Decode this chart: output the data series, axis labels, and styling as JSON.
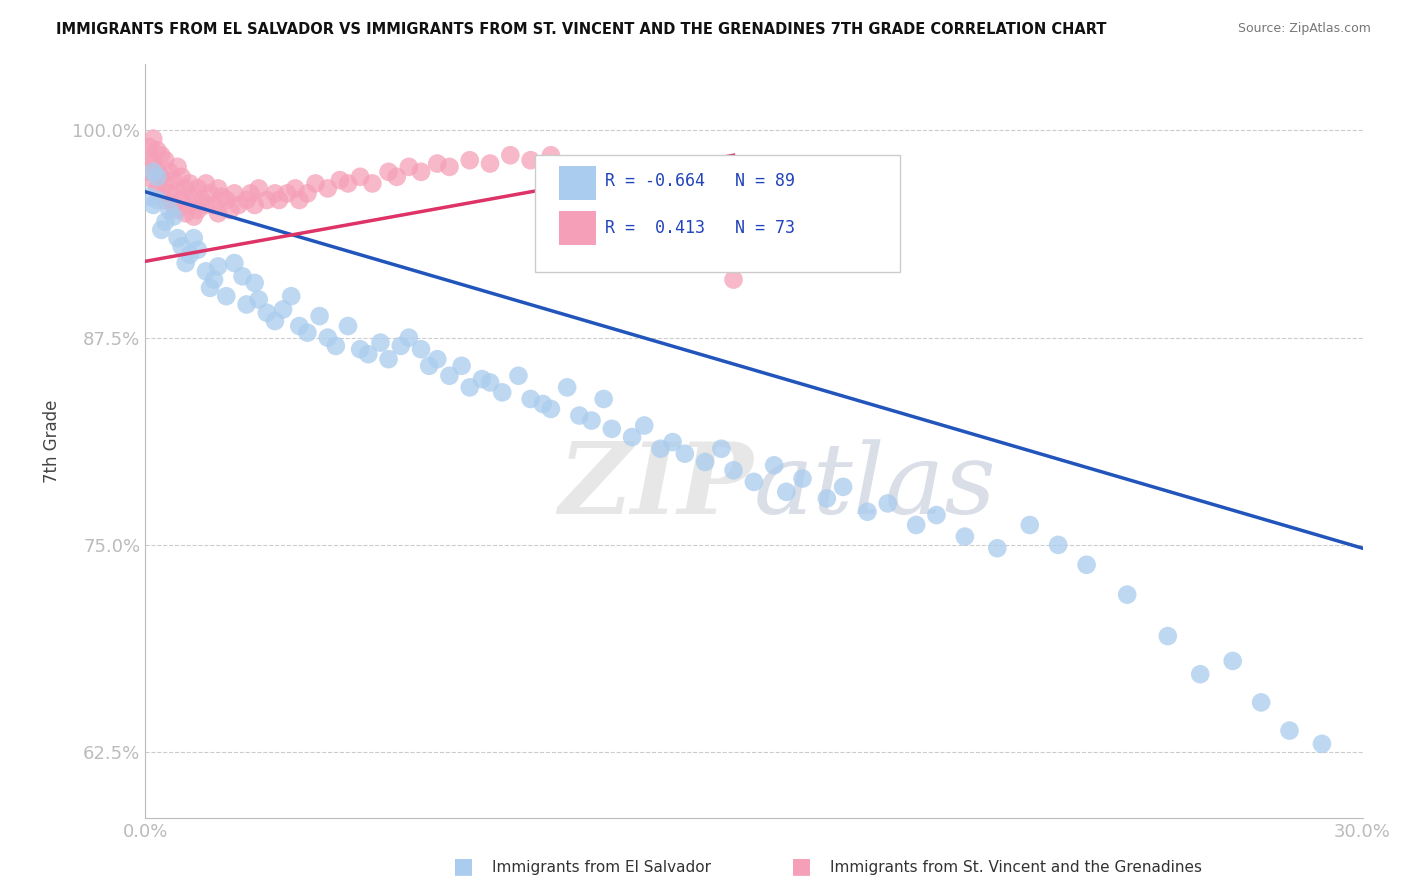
{
  "title": "IMMIGRANTS FROM EL SALVADOR VS IMMIGRANTS FROM ST. VINCENT AND THE GRENADINES 7TH GRADE CORRELATION CHART",
  "source": "Source: ZipAtlas.com",
  "ylabel": "7th Grade",
  "xlim": [
    0.0,
    0.3
  ],
  "ylim": [
    0.585,
    1.04
  ],
  "xtick_labels": [
    "0.0%",
    "30.0%"
  ],
  "xtick_positions": [
    0.0,
    0.3
  ],
  "ytick_labels": [
    "62.5%",
    "75.0%",
    "87.5%",
    "100.0%"
  ],
  "ytick_positions": [
    0.625,
    0.75,
    0.875,
    1.0
  ],
  "blue_color": "#aaccee",
  "pink_color": "#f5a0b8",
  "blue_line_color": "#2255bb",
  "pink_line_color": "#dd3366",
  "legend_R_blue": "-0.664",
  "legend_N_blue": "89",
  "legend_R_pink": "0.413",
  "legend_N_pink": "73",
  "legend_label_blue": "Immigrants from El Salvador",
  "legend_label_pink": "Immigrants from St. Vincent and the Grenadines",
  "watermark": "ZIPatlas",
  "blue_line_x0": 0.0,
  "blue_line_y0": 0.963,
  "blue_line_x1": 0.3,
  "blue_line_y1": 0.748,
  "pink_line_x0": 0.0,
  "pink_line_y0": 0.921,
  "pink_line_x1": 0.145,
  "pink_line_y1": 0.985,
  "blue_scatter_x": [
    0.001,
    0.002,
    0.002,
    0.003,
    0.003,
    0.004,
    0.005,
    0.006,
    0.007,
    0.008,
    0.009,
    0.01,
    0.011,
    0.012,
    0.013,
    0.015,
    0.016,
    0.017,
    0.018,
    0.02,
    0.022,
    0.024,
    0.025,
    0.027,
    0.028,
    0.03,
    0.032,
    0.034,
    0.036,
    0.038,
    0.04,
    0.043,
    0.045,
    0.047,
    0.05,
    0.053,
    0.055,
    0.058,
    0.06,
    0.063,
    0.065,
    0.068,
    0.07,
    0.072,
    0.075,
    0.078,
    0.08,
    0.083,
    0.085,
    0.088,
    0.092,
    0.095,
    0.098,
    0.1,
    0.104,
    0.107,
    0.11,
    0.113,
    0.115,
    0.12,
    0.123,
    0.127,
    0.13,
    0.133,
    0.138,
    0.142,
    0.145,
    0.15,
    0.155,
    0.158,
    0.162,
    0.168,
    0.172,
    0.178,
    0.183,
    0.19,
    0.195,
    0.202,
    0.21,
    0.218,
    0.225,
    0.232,
    0.242,
    0.252,
    0.26,
    0.268,
    0.275,
    0.282,
    0.29
  ],
  "blue_scatter_y": [
    0.96,
    0.955,
    0.975,
    0.958,
    0.972,
    0.94,
    0.945,
    0.952,
    0.948,
    0.935,
    0.93,
    0.92,
    0.925,
    0.935,
    0.928,
    0.915,
    0.905,
    0.91,
    0.918,
    0.9,
    0.92,
    0.912,
    0.895,
    0.908,
    0.898,
    0.89,
    0.885,
    0.892,
    0.9,
    0.882,
    0.878,
    0.888,
    0.875,
    0.87,
    0.882,
    0.868,
    0.865,
    0.872,
    0.862,
    0.87,
    0.875,
    0.868,
    0.858,
    0.862,
    0.852,
    0.858,
    0.845,
    0.85,
    0.848,
    0.842,
    0.852,
    0.838,
    0.835,
    0.832,
    0.845,
    0.828,
    0.825,
    0.838,
    0.82,
    0.815,
    0.822,
    0.808,
    0.812,
    0.805,
    0.8,
    0.808,
    0.795,
    0.788,
    0.798,
    0.782,
    0.79,
    0.778,
    0.785,
    0.77,
    0.775,
    0.762,
    0.768,
    0.755,
    0.748,
    0.762,
    0.75,
    0.738,
    0.72,
    0.695,
    0.672,
    0.68,
    0.655,
    0.638,
    0.63
  ],
  "pink_scatter_x": [
    0.001,
    0.001,
    0.001,
    0.002,
    0.002,
    0.002,
    0.003,
    0.003,
    0.003,
    0.004,
    0.004,
    0.004,
    0.005,
    0.005,
    0.005,
    0.006,
    0.006,
    0.007,
    0.007,
    0.008,
    0.008,
    0.008,
    0.009,
    0.009,
    0.01,
    0.01,
    0.011,
    0.011,
    0.012,
    0.012,
    0.013,
    0.013,
    0.014,
    0.015,
    0.015,
    0.016,
    0.017,
    0.018,
    0.018,
    0.019,
    0.02,
    0.021,
    0.022,
    0.023,
    0.025,
    0.026,
    0.027,
    0.028,
    0.03,
    0.032,
    0.033,
    0.035,
    0.037,
    0.038,
    0.04,
    0.042,
    0.045,
    0.048,
    0.05,
    0.053,
    0.056,
    0.06,
    0.062,
    0.065,
    0.068,
    0.072,
    0.075,
    0.08,
    0.085,
    0.09,
    0.095,
    0.1,
    0.145
  ],
  "pink_scatter_y": [
    0.99,
    0.985,
    0.975,
    0.995,
    0.98,
    0.97,
    0.988,
    0.975,
    0.965,
    0.985,
    0.972,
    0.96,
    0.982,
    0.968,
    0.958,
    0.975,
    0.962,
    0.97,
    0.955,
    0.978,
    0.963,
    0.952,
    0.972,
    0.958,
    0.965,
    0.95,
    0.968,
    0.955,
    0.96,
    0.948,
    0.965,
    0.952,
    0.958,
    0.968,
    0.955,
    0.962,
    0.955,
    0.965,
    0.95,
    0.96,
    0.958,
    0.952,
    0.962,
    0.955,
    0.958,
    0.962,
    0.955,
    0.965,
    0.958,
    0.962,
    0.958,
    0.962,
    0.965,
    0.958,
    0.962,
    0.968,
    0.965,
    0.97,
    0.968,
    0.972,
    0.968,
    0.975,
    0.972,
    0.978,
    0.975,
    0.98,
    0.978,
    0.982,
    0.98,
    0.985,
    0.982,
    0.985,
    0.91
  ]
}
